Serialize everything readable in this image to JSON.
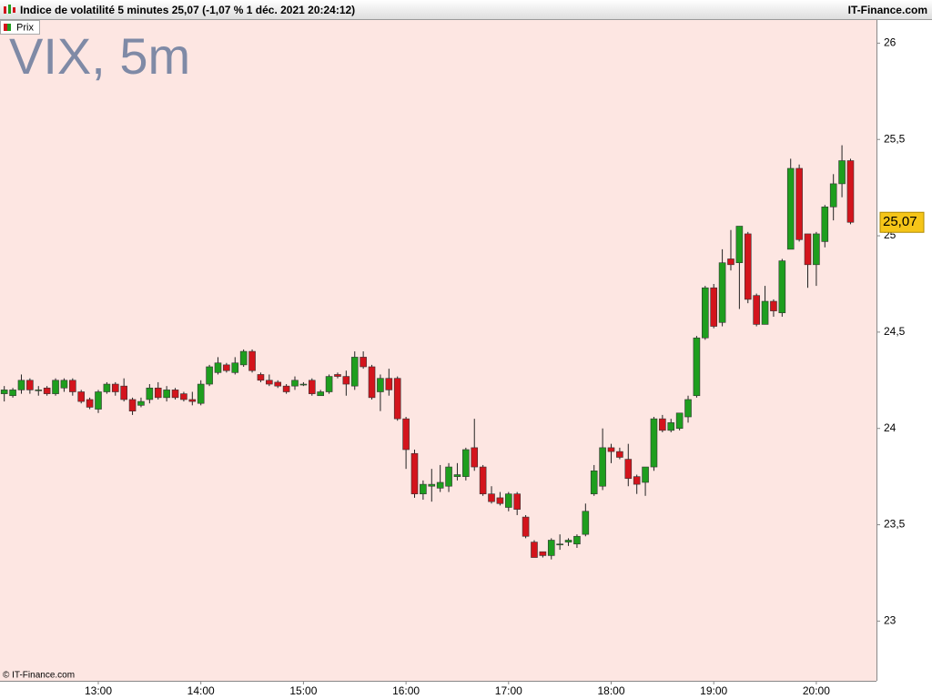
{
  "chart_data": {
    "type": "candlestick",
    "title": "Indice de volatilité 5 minutes 25,07 (-1,07 % 1 déc. 2021 20:24:12)",
    "source": "IT-Finance.com",
    "watermark": "VIX, 5m",
    "credit": "© IT-Finance.com",
    "last_price": {
      "value": 25.07,
      "label": "25,07"
    },
    "ylim": [
      22.69,
      26.12
    ],
    "yticks": [
      {
        "value": 23,
        "label": "23"
      },
      {
        "value": 23.5,
        "label": "23,5"
      },
      {
        "value": 24,
        "label": "24"
      },
      {
        "value": 24.5,
        "label": "24,5"
      },
      {
        "value": 25,
        "label": "25"
      },
      {
        "value": 25.5,
        "label": "25,5"
      },
      {
        "value": 26,
        "label": "26"
      }
    ],
    "categories": [
      null,
      null,
      null,
      null,
      null,
      null,
      null,
      null,
      null,
      null,
      null,
      "13:00",
      null,
      null,
      null,
      null,
      null,
      null,
      null,
      null,
      null,
      null,
      null,
      "14:00",
      null,
      null,
      null,
      null,
      null,
      null,
      null,
      null,
      null,
      null,
      null,
      "15:00",
      null,
      null,
      null,
      null,
      null,
      null,
      null,
      null,
      null,
      null,
      null,
      "16:00",
      null,
      null,
      null,
      null,
      null,
      null,
      null,
      null,
      null,
      null,
      null,
      "17:00",
      null,
      null,
      null,
      null,
      null,
      null,
      null,
      null,
      null,
      null,
      null,
      "18:00",
      null,
      null,
      null,
      null,
      null,
      null,
      null,
      null,
      null,
      null,
      null,
      "19:00",
      null,
      null,
      null,
      null,
      null,
      null,
      null,
      null,
      null,
      null,
      null,
      "20:00",
      null,
      null,
      null,
      null
    ],
    "series": [
      {
        "name": "Prix",
        "up_color": "#1e9e1e",
        "down_color": "#d3141c",
        "open": [
          24.18,
          24.17,
          24.2,
          24.25,
          24.2,
          24.21,
          24.18,
          24.21,
          24.25,
          24.19,
          24.15,
          24.1,
          24.19,
          24.23,
          24.22,
          24.15,
          24.12,
          24.15,
          24.21,
          24.16,
          24.2,
          24.18,
          24.15,
          24.13,
          24.23,
          24.29,
          24.33,
          24.29,
          24.33,
          24.4,
          24.28,
          24.25,
          24.24,
          24.22,
          24.22,
          24.23,
          24.25,
          24.17,
          24.19,
          24.28,
          24.27,
          24.22,
          24.37,
          24.32,
          24.19,
          24.26,
          24.26,
          24.05,
          23.87,
          23.66,
          23.7,
          23.69,
          23.7,
          23.75,
          23.75,
          23.9,
          23.8,
          23.66,
          23.64,
          23.59,
          23.66,
          23.54,
          23.41,
          23.36,
          23.34,
          23.4,
          23.41,
          23.4,
          23.45,
          23.66,
          23.7,
          23.9,
          23.88,
          23.84,
          23.75,
          23.72,
          23.8,
          24.05,
          23.99,
          24.0,
          24.06,
          24.17,
          24.47,
          24.73,
          24.55,
          24.88,
          24.86,
          25.01,
          24.69,
          24.54,
          24.66,
          24.6,
          24.93,
          25.35,
          25.01,
          24.85,
          24.97,
          25.15,
          25.27,
          25.39
        ],
        "high": [
          24.22,
          24.21,
          24.28,
          24.26,
          24.22,
          24.22,
          24.26,
          24.26,
          24.26,
          24.2,
          24.16,
          24.2,
          24.24,
          24.24,
          24.26,
          24.16,
          24.16,
          24.23,
          24.24,
          24.22,
          24.21,
          24.19,
          24.19,
          24.25,
          24.33,
          24.37,
          24.34,
          24.37,
          24.41,
          24.41,
          24.29,
          24.28,
          24.25,
          24.23,
          24.27,
          24.24,
          24.26,
          24.2,
          24.28,
          24.29,
          24.3,
          24.4,
          24.4,
          24.33,
          24.28,
          24.31,
          24.27,
          24.06,
          23.89,
          23.73,
          23.79,
          23.81,
          23.82,
          23.82,
          23.9,
          24.05,
          23.81,
          23.7,
          23.67,
          23.67,
          23.67,
          23.55,
          23.42,
          23.36,
          23.43,
          23.45,
          23.43,
          23.45,
          23.61,
          23.81,
          24.0,
          23.92,
          23.9,
          23.92,
          23.76,
          23.8,
          24.06,
          24.07,
          24.05,
          24.08,
          24.17,
          24.48,
          24.74,
          24.75,
          24.93,
          25.03,
          25.05,
          25.02,
          24.7,
          24.74,
          24.67,
          24.88,
          25.4,
          25.37,
          25.01,
          25.02,
          25.16,
          25.32,
          25.47,
          25.4
        ],
        "low": [
          24.14,
          24.16,
          24.18,
          24.18,
          24.17,
          24.17,
          24.17,
          24.19,
          24.17,
          24.13,
          24.1,
          24.08,
          24.18,
          24.17,
          24.14,
          24.07,
          24.11,
          24.13,
          24.15,
          24.14,
          24.15,
          24.14,
          24.12,
          24.12,
          24.22,
          24.28,
          24.29,
          24.28,
          24.32,
          24.29,
          24.24,
          24.22,
          24.21,
          24.18,
          24.2,
          24.22,
          24.17,
          24.17,
          24.18,
          24.26,
          24.17,
          24.2,
          24.31,
          24.15,
          24.09,
          24.17,
          24.04,
          23.79,
          23.64,
          23.63,
          23.62,
          23.67,
          23.67,
          23.73,
          23.73,
          23.78,
          23.65,
          23.61,
          23.6,
          23.57,
          23.55,
          23.43,
          23.33,
          23.33,
          23.32,
          23.37,
          23.39,
          23.38,
          23.44,
          23.65,
          23.68,
          23.82,
          23.84,
          23.7,
          23.66,
          23.65,
          23.78,
          23.98,
          23.98,
          23.99,
          24.03,
          24.16,
          24.46,
          24.52,
          24.53,
          24.82,
          24.62,
          24.65,
          24.53,
          24.54,
          24.58,
          24.58,
          24.93,
          24.97,
          24.73,
          24.74,
          24.94,
          25.08,
          25.2,
          25.06
        ],
        "close": [
          24.2,
          24.2,
          24.25,
          24.2,
          24.2,
          24.18,
          24.25,
          24.25,
          24.19,
          24.14,
          24.11,
          24.19,
          24.23,
          24.19,
          24.15,
          24.09,
          24.14,
          24.21,
          24.16,
          24.2,
          24.16,
          24.15,
          24.14,
          24.23,
          24.32,
          24.34,
          24.3,
          24.34,
          24.4,
          24.3,
          24.25,
          24.23,
          24.22,
          24.19,
          24.25,
          24.23,
          24.18,
          24.19,
          24.27,
          24.27,
          24.23,
          24.37,
          24.32,
          24.16,
          24.26,
          24.2,
          24.05,
          23.89,
          23.66,
          23.71,
          23.71,
          23.72,
          23.8,
          23.76,
          23.89,
          23.8,
          23.66,
          23.62,
          23.61,
          23.66,
          23.58,
          23.44,
          23.33,
          23.34,
          23.42,
          23.4,
          23.42,
          23.44,
          23.57,
          23.78,
          23.9,
          23.88,
          23.85,
          23.74,
          23.71,
          23.8,
          24.05,
          23.99,
          24.03,
          24.08,
          24.15,
          24.47,
          24.73,
          24.53,
          24.86,
          24.85,
          25.05,
          24.67,
          24.54,
          24.66,
          24.61,
          24.87,
          25.35,
          24.98,
          24.85,
          25.01,
          25.15,
          25.27,
          25.39,
          25.07
        ]
      }
    ]
  }
}
